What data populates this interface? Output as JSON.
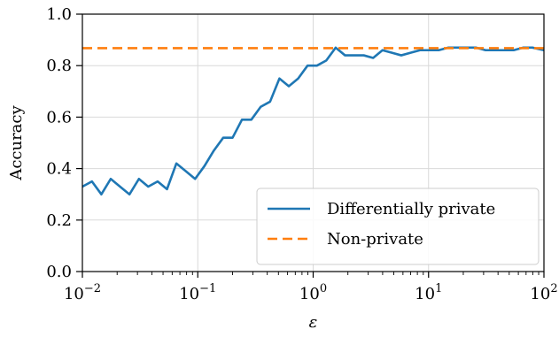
{
  "chart_data": {
    "type": "line",
    "xscale": "log",
    "xlim": [
      0.01,
      100
    ],
    "ylim": [
      0.0,
      1.0
    ],
    "xlabel": "ε",
    "ylabel": "Accuracy",
    "grid": true,
    "legend_position": "lower-right",
    "x_ticks": [
      {
        "value": 0.01,
        "base": "10",
        "exp": "−2"
      },
      {
        "value": 0.1,
        "base": "10",
        "exp": "−1"
      },
      {
        "value": 1,
        "base": "10",
        "exp": "0"
      },
      {
        "value": 10,
        "base": "10",
        "exp": "1"
      },
      {
        "value": 100,
        "base": "10",
        "exp": "2"
      }
    ],
    "y_ticks": [
      {
        "value": 0.0,
        "label": "0.0"
      },
      {
        "value": 0.2,
        "label": "0.2"
      },
      {
        "value": 0.4,
        "label": "0.4"
      },
      {
        "value": 0.6,
        "label": "0.6"
      },
      {
        "value": 0.8,
        "label": "0.8"
      },
      {
        "value": 1.0,
        "label": "1.0"
      }
    ],
    "series": [
      {
        "name": "Differentially private",
        "color": "#1f77b4",
        "style": "solid",
        "x": [
          0.01,
          0.0121,
          0.0146,
          0.0176,
          0.0212,
          0.0256,
          0.0309,
          0.0372,
          0.0449,
          0.0541,
          0.0652,
          0.0787,
          0.0948,
          0.1143,
          0.1378,
          0.1662,
          0.2003,
          0.2415,
          0.2911,
          0.351,
          0.4232,
          0.5102,
          0.6151,
          0.7415,
          0.894,
          1.0778,
          1.2993,
          1.5665,
          1.8886,
          2.2769,
          2.745,
          3.3094,
          3.9898,
          4.8101,
          5.7991,
          6.9914,
          8.4288,
          10.1618,
          12.2511,
          14.77,
          17.8068,
          21.4678,
          25.8816,
          31.2029,
          37.6183,
          45.3528,
          54.6775,
          65.9193,
          79.4725,
          100
        ],
        "y": [
          0.33,
          0.35,
          0.3,
          0.36,
          0.33,
          0.3,
          0.36,
          0.33,
          0.35,
          0.32,
          0.42,
          0.39,
          0.36,
          0.41,
          0.47,
          0.52,
          0.52,
          0.59,
          0.59,
          0.64,
          0.66,
          0.75,
          0.72,
          0.75,
          0.8,
          0.8,
          0.82,
          0.87,
          0.84,
          0.84,
          0.84,
          0.83,
          0.86,
          0.85,
          0.84,
          0.85,
          0.86,
          0.86,
          0.86,
          0.87,
          0.87,
          0.87,
          0.87,
          0.86,
          0.86,
          0.86,
          0.86,
          0.87,
          0.87,
          0.86
        ]
      },
      {
        "name": "Non-private",
        "color": "#ff7f0e",
        "style": "dashed",
        "x": [
          0.01,
          100
        ],
        "y": [
          0.868,
          0.868
        ]
      }
    ]
  }
}
